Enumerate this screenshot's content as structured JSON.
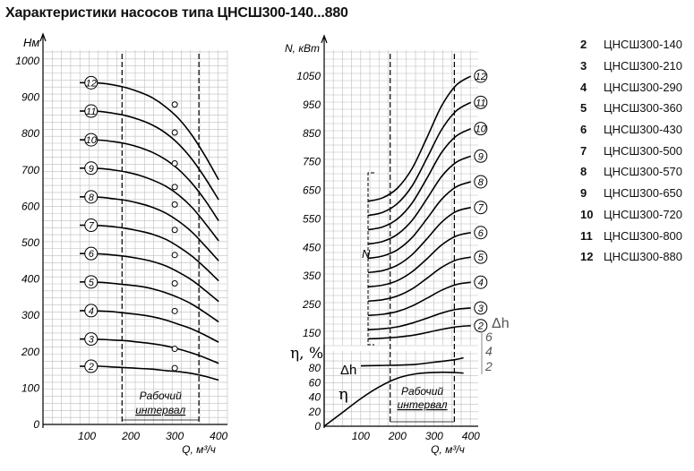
{
  "title": "Характеристики насосов типа ЦНСШ300-140...880",
  "legend": [
    {
      "num": "2",
      "name": "ЦНСШ300-140"
    },
    {
      "num": "3",
      "name": "ЦНСШ300-210"
    },
    {
      "num": "4",
      "name": "ЦНСШ300-290"
    },
    {
      "num": "5",
      "name": "ЦНСШ300-360"
    },
    {
      "num": "6",
      "name": "ЦНСШ300-430"
    },
    {
      "num": "7",
      "name": "ЦНСШ300-500"
    },
    {
      "num": "8",
      "name": "ЦНСШ300-570"
    },
    {
      "num": "9",
      "name": "ЦНСШ300-650"
    },
    {
      "num": "10",
      "name": "ЦНСШ300-720"
    },
    {
      "num": "11",
      "name": "ЦНСШ300-800"
    },
    {
      "num": "12",
      "name": "ЦНСШ300-880"
    }
  ],
  "chart_data": [
    {
      "type": "line",
      "ylabel": "H, м",
      "xlabel": "Q, м³/ч",
      "xlim": [
        0,
        420
      ],
      "ylim": [
        0,
        1030
      ],
      "xticks": [
        100,
        200,
        300,
        400
      ],
      "yticks": [
        0,
        100,
        200,
        300,
        400,
        500,
        600,
        700,
        800,
        900,
        1000
      ],
      "grid": true,
      "working_interval": {
        "label": "Рабочий интервал",
        "from": 180,
        "to": 355
      },
      "x": [
        100,
        130,
        160,
        190,
        220,
        250,
        280,
        310,
        340,
        370,
        400
      ],
      "series": [
        {
          "name": "2",
          "marker_q": 300,
          "marker_h": 155,
          "values": [
            160,
            160,
            158,
            156,
            154,
            152,
            148,
            145,
            140,
            132,
            122
          ]
        },
        {
          "name": "3",
          "marker_q": 300,
          "marker_h": 208,
          "values": [
            235,
            234,
            232,
            230,
            226,
            222,
            216,
            207,
            196,
            183,
            168
          ]
        },
        {
          "name": "4",
          "marker_q": 300,
          "marker_h": 312,
          "values": [
            313,
            312,
            310,
            306,
            302,
            296,
            287,
            275,
            262,
            245,
            226
          ]
        },
        {
          "name": "5",
          "marker_q": 300,
          "marker_h": 388,
          "values": [
            392,
            391,
            388,
            384,
            380,
            373,
            362,
            348,
            330,
            307,
            282
          ]
        },
        {
          "name": "6",
          "marker_q": 300,
          "marker_h": 466,
          "values": [
            470,
            469,
            466,
            462,
            456,
            448,
            436,
            418,
            396,
            368,
            338
          ]
        },
        {
          "name": "7",
          "marker_q": 300,
          "marker_h": 535,
          "values": [
            548,
            547,
            544,
            539,
            532,
            523,
            509,
            488,
            462,
            430,
            395
          ]
        },
        {
          "name": "8",
          "marker_q": 300,
          "marker_h": 605,
          "values": [
            626,
            625,
            621,
            616,
            608,
            597,
            581,
            558,
            528,
            490,
            450
          ]
        },
        {
          "name": "9",
          "marker_q": 300,
          "marker_h": 653,
          "values": [
            705,
            704,
            700,
            694,
            685,
            672,
            655,
            630,
            596,
            552,
            505
          ]
        },
        {
          "name": "10",
          "marker_q": 300,
          "marker_h": 718,
          "values": [
            783,
            782,
            778,
            772,
            762,
            748,
            728,
            700,
            662,
            615,
            560
          ]
        },
        {
          "name": "11",
          "marker_q": 300,
          "marker_h": 803,
          "values": [
            862,
            861,
            856,
            849,
            838,
            823,
            801,
            770,
            728,
            676,
            618
          ]
        },
        {
          "name": "12",
          "marker_q": 300,
          "marker_h": 880,
          "values": [
            940,
            939,
            934,
            926,
            914,
            898,
            873,
            840,
            794,
            737,
            673
          ]
        }
      ]
    },
    {
      "type": "line",
      "ylabel": "N, кВт",
      "xlabel": "Q, м³/ч",
      "xlim": [
        0,
        420
      ],
      "ylim": [
        0,
        1100
      ],
      "xticks": [
        100,
        200,
        300,
        400
      ],
      "yticks": [
        150,
        250,
        350,
        450,
        550,
        650,
        750,
        850,
        950,
        1050
      ],
      "grid": true,
      "working_interval": {
        "label": "Рабочий интервал",
        "from": 180,
        "to": 355
      },
      "curve_label": "N",
      "x": [
        120,
        160,
        200,
        240,
        280,
        320,
        360,
        400
      ],
      "series": [
        {
          "name": "2",
          "values": [
            130,
            132,
            136,
            142,
            152,
            163,
            172,
            176
          ]
        },
        {
          "name": "3",
          "values": [
            162,
            165,
            172,
            185,
            202,
            220,
            233,
            238
          ]
        },
        {
          "name": "4",
          "values": [
            212,
            216,
            226,
            245,
            272,
            300,
            320,
            328
          ]
        },
        {
          "name": "5",
          "values": [
            262,
            267,
            280,
            305,
            342,
            380,
            406,
            416
          ]
        },
        {
          "name": "6",
          "values": [
            312,
            318,
            334,
            365,
            410,
            458,
            490,
            502
          ]
        },
        {
          "name": "7",
          "values": [
            362,
            369,
            388,
            425,
            480,
            538,
            576,
            590
          ]
        },
        {
          "name": "8",
          "values": [
            412,
            420,
            442,
            485,
            550,
            618,
            662,
            680
          ]
        },
        {
          "name": "9",
          "values": [
            462,
            471,
            496,
            545,
            620,
            698,
            748,
            770
          ]
        },
        {
          "name": "10",
          "values": [
            512,
            522,
            550,
            606,
            692,
            782,
            840,
            866
          ]
        },
        {
          "name": "11",
          "values": [
            562,
            573,
            604,
            666,
            762,
            862,
            928,
            958
          ]
        },
        {
          "name": "12",
          "values": [
            612,
            624,
            658,
            727,
            834,
            945,
            1018,
            1050
          ]
        }
      ]
    },
    {
      "type": "line",
      "ylabel": "η, %",
      "xlabel": "Q, м³/ч",
      "xlim": [
        0,
        420
      ],
      "ylim": [
        0,
        90
      ],
      "xticks": [
        100,
        200,
        300,
        400
      ],
      "yticks": [
        0,
        10,
        20,
        30,
        40,
        50,
        60,
        70,
        80
      ],
      "secondary_axis": {
        "label": "Δh",
        "ticks": [
          "2",
          "4",
          "6"
        ]
      },
      "x": [
        0,
        50,
        100,
        150,
        200,
        250,
        300,
        350,
        380
      ],
      "series": [
        {
          "name": "η",
          "values": [
            0,
            19,
            38,
            54,
            66,
            72,
            74,
            74,
            73
          ]
        },
        {
          "name": "Δh",
          "values": [
            83,
            83,
            83,
            83.5,
            84,
            85,
            88,
            91,
            94
          ]
        }
      ]
    }
  ]
}
